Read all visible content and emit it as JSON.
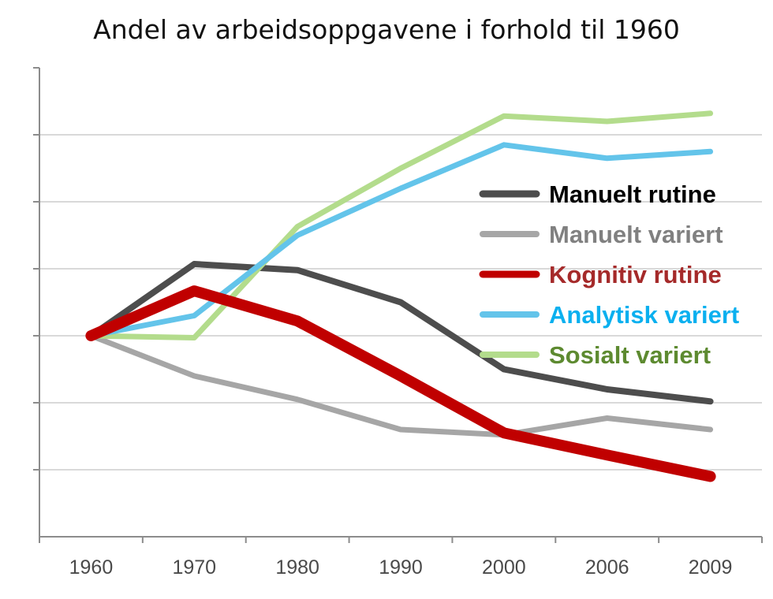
{
  "chart_data": {
    "type": "line",
    "title": "Andel av arbeidsoppgavene i forhold til 1960",
    "xlabel": "",
    "ylabel": "",
    "categories": [
      "1960",
      "1970",
      "1980",
      "1990",
      "2000",
      "2006",
      "2009"
    ],
    "ylim": [
      0,
      7
    ],
    "y_gridlines": [
      1,
      2,
      3,
      4,
      5,
      6
    ],
    "y_tick_labels_shown": false,
    "grid": "horizontal",
    "legend_position": "right",
    "series": [
      {
        "name": "Manuelt rutine",
        "color": "#4d4d4d",
        "label_color": "#000000",
        "line_width": 8,
        "values": [
          3.0,
          4.07,
          3.98,
          3.5,
          2.5,
          2.2,
          2.02
        ]
      },
      {
        "name": "Manuelt variert",
        "color": "#a6a6a6",
        "label_color": "#808080",
        "line_width": 7,
        "values": [
          3.0,
          2.4,
          2.05,
          1.6,
          1.52,
          1.77,
          1.6
        ]
      },
      {
        "name": "Kognitiv rutine",
        "color": "#c00000",
        "label_color": "#a52a2a",
        "line_width": 14,
        "values": [
          3.0,
          3.67,
          3.22,
          2.4,
          1.55,
          1.22,
          0.9
        ]
      },
      {
        "name": "Analytisk variert",
        "color": "#63c4ea",
        "label_color": "#0ab0ef",
        "line_width": 7,
        "values": [
          3.0,
          3.3,
          4.5,
          5.2,
          5.85,
          5.65,
          5.75
        ]
      },
      {
        "name": "Sosialt variert",
        "color": "#b3dc8c",
        "label_color": "#5d8a30",
        "line_width": 7,
        "values": [
          3.0,
          2.97,
          4.63,
          5.5,
          6.28,
          6.2,
          6.32
        ]
      }
    ]
  }
}
